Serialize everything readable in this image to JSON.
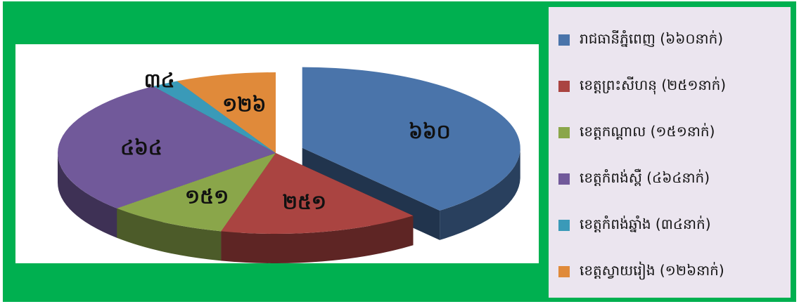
{
  "chart_data": {
    "type": "pie",
    "series": [
      {
        "label": "រាជធានីភ្នំពេញ (៦៦០នាក់)",
        "data_label": "៦៦០",
        "value": 660,
        "color": "#4a74aa",
        "exploded": true
      },
      {
        "label": "ខេត្តព្រះសីហនុ (២៥១នាក់)",
        "data_label": "២៥១",
        "value": 251,
        "color": "#aa4441",
        "exploded": false
      },
      {
        "label": "ខេត្តកណ្តាល (១៥១នាក់)",
        "data_label": "១៥១",
        "value": 151,
        "color": "#8aa64a",
        "exploded": false
      },
      {
        "label": "ខេត្តកំពង់ស្ពឺ (៤៦៤នាក់)",
        "data_label": "៤៦៤",
        "value": 464,
        "color": "#71599a",
        "exploded": false
      },
      {
        "label": "ខេត្តកំពង់ឆ្នាំង (៣៤នាក់)",
        "data_label": "៣៤",
        "value": 34,
        "color": "#3a9ab8",
        "exploded": false
      },
      {
        "label": "ខេត្តស្វាយរៀង (១២៦នាក់)",
        "data_label": "១២៦",
        "value": 126,
        "color": "#e08a3a",
        "exploded": false
      }
    ],
    "legend_position": "right",
    "style": "3d-exploded-pie"
  }
}
